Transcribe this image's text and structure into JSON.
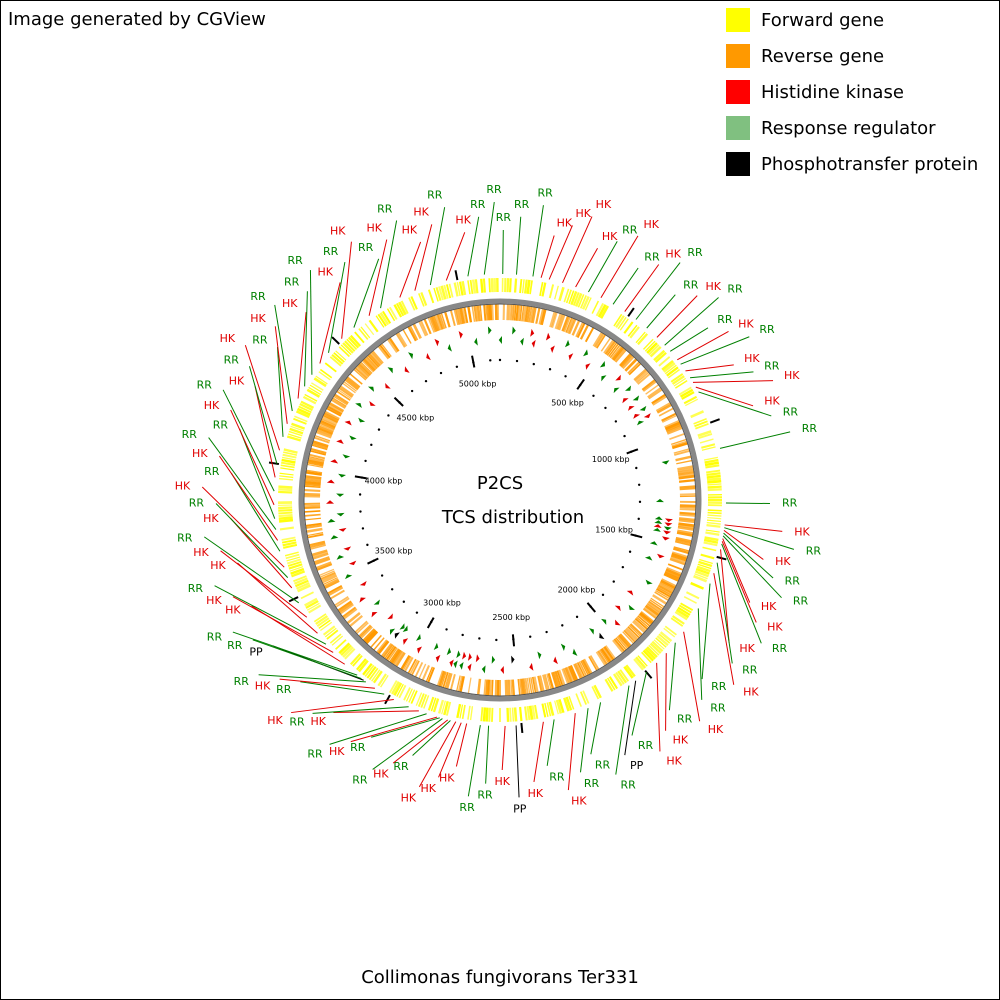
{
  "header": {
    "credit": "Image generated by CGView"
  },
  "legend": [
    {
      "label": "Forward gene",
      "color": "#ffff00"
    },
    {
      "label": "Reverse gene",
      "color": "#ff9900"
    },
    {
      "label": "Histidine kinase",
      "color": "#ff0000"
    },
    {
      "label": "Response regulator",
      "color": "#80c080"
    },
    {
      "label": "Phosphotransfer protein",
      "color": "#000000"
    }
  ],
  "map": {
    "title": "P2CS",
    "subtitle": "TCS distribution",
    "length": 5157,
    "ticks": [
      {
        "value": 500,
        "label": "500 kbp"
      },
      {
        "value": 1000,
        "label": "1000 kbp"
      },
      {
        "value": 1500,
        "label": "1500 kbp"
      },
      {
        "value": 2000,
        "label": "2000 kbp"
      },
      {
        "value": 2500,
        "label": "2500 kbp"
      },
      {
        "value": 3000,
        "label": "3000 kbp"
      },
      {
        "value": 3500,
        "label": "3500 kbp"
      },
      {
        "value": 4000,
        "label": "4000 kbp"
      },
      {
        "value": 4500,
        "label": "4500 kbp"
      },
      {
        "value": 5000,
        "label": "5000 kbp"
      }
    ],
    "colors": {
      "HK": "#e00000",
      "RR": "#008000",
      "PP": "#000000"
    },
    "features": [
      {
        "label": "RR",
        "position": 10
      },
      {
        "label": "RR",
        "position": 60
      },
      {
        "label": "RR",
        "position": 120
      },
      {
        "label": "HK",
        "position": 150
      },
      {
        "label": "HK",
        "position": 180
      },
      {
        "label": "HK",
        "position": 230
      },
      {
        "label": "HK",
        "position": 280
      },
      {
        "label": "RR",
        "position": 330
      },
      {
        "label": "HK",
        "position": 380
      },
      {
        "label": "RR",
        "position": 430
      },
      {
        "label": "HK",
        "position": 480
      },
      {
        "label": "RR",
        "position": 530
      },
      {
        "label": "RR",
        "position": 580
      },
      {
        "label": "HK",
        "position": 630
      },
      {
        "label": "RR",
        "position": 670
      },
      {
        "label": "RR",
        "position": 700
      },
      {
        "label": "HK",
        "position": 740
      },
      {
        "label": "RR",
        "position": 760
      },
      {
        "label": "HK",
        "position": 790
      },
      {
        "label": "RR",
        "position": 820
      },
      {
        "label": "HK",
        "position": 840
      },
      {
        "label": "HK",
        "position": 860
      },
      {
        "label": "RR",
        "position": 880
      },
      {
        "label": "RR",
        "position": 1100
      },
      {
        "label": "RR",
        "position": 1300
      },
      {
        "label": "HK",
        "position": 1380
      },
      {
        "label": "RR",
        "position": 1390
      },
      {
        "label": "HK",
        "position": 1400
      },
      {
        "label": "RR",
        "position": 1410
      },
      {
        "label": "RR",
        "position": 1420
      },
      {
        "label": "HK",
        "position": 1430
      },
      {
        "label": "HK",
        "position": 1440
      },
      {
        "label": "RR",
        "position": 1450
      },
      {
        "label": "HK",
        "position": 1470
      },
      {
        "label": "RR",
        "position": 1520
      },
      {
        "label": "HK",
        "position": 1560
      },
      {
        "label": "RR",
        "position": 1600
      },
      {
        "label": "RR",
        "position": 1700
      },
      {
        "label": "HK",
        "position": 1800
      },
      {
        "label": "RR",
        "position": 1850
      },
      {
        "label": "HK",
        "position": 1900
      },
      {
        "label": "HK",
        "position": 1950
      },
      {
        "label": "RR",
        "position": 2000
      },
      {
        "label": "PP",
        "position": 2050
      },
      {
        "label": "RR",
        "position": 2080
      },
      {
        "label": "RR",
        "position": 2200
      },
      {
        "label": "RR",
        "position": 2250
      },
      {
        "label": "HK",
        "position": 2300
      },
      {
        "label": "RR",
        "position": 2380
      },
      {
        "label": "HK",
        "position": 2420
      },
      {
        "label": "PP",
        "position": 2520
      },
      {
        "label": "HK",
        "position": 2560
      },
      {
        "label": "RR",
        "position": 2620
      },
      {
        "label": "RR",
        "position": 2650
      },
      {
        "label": "HK",
        "position": 2700
      },
      {
        "label": "HK",
        "position": 2720
      },
      {
        "label": "HK",
        "position": 2740
      },
      {
        "label": "RR",
        "position": 2760
      },
      {
        "label": "HK",
        "position": 2770
      },
      {
        "label": "RR",
        "position": 2790
      },
      {
        "label": "RR",
        "position": 2800
      },
      {
        "label": "HK",
        "position": 2810
      },
      {
        "label": "RR",
        "position": 2850
      },
      {
        "label": "HK",
        "position": 2880
      },
      {
        "label": "RR",
        "position": 2920
      },
      {
        "label": "HK",
        "position": 2980
      },
      {
        "label": "RR",
        "position": 3020
      },
      {
        "label": "HK",
        "position": 3060
      },
      {
        "label": "RR",
        "position": 3100
      },
      {
        "label": "PP",
        "position": 3110
      },
      {
        "label": "RR",
        "position": 3120
      },
      {
        "label": "RR",
        "position": 3140
      },
      {
        "label": "HK",
        "position": 3200
      },
      {
        "label": "HK",
        "position": 3260
      },
      {
        "label": "RR",
        "position": 3300
      },
      {
        "label": "HK",
        "position": 3350
      },
      {
        "label": "HK",
        "position": 3420
      },
      {
        "label": "RR",
        "position": 3480
      },
      {
        "label": "HK",
        "position": 3540
      },
      {
        "label": "RR",
        "position": 3580
      },
      {
        "label": "HK",
        "position": 3620
      },
      {
        "label": "RR",
        "position": 3680
      },
      {
        "label": "HK",
        "position": 3720
      },
      {
        "label": "RR",
        "position": 3760
      },
      {
        "label": "RR",
        "position": 3800
      },
      {
        "label": "HK",
        "position": 3850
      },
      {
        "label": "RR",
        "position": 3900
      },
      {
        "label": "HK",
        "position": 3950
      },
      {
        "label": "RR",
        "position": 4000
      },
      {
        "label": "HK",
        "position": 4050
      },
      {
        "label": "RR",
        "position": 4100
      },
      {
        "label": "HK",
        "position": 4150
      },
      {
        "label": "RR",
        "position": 4200
      },
      {
        "label": "HK",
        "position": 4250
      },
      {
        "label": "RR",
        "position": 4300
      },
      {
        "label": "RR",
        "position": 4350
      },
      {
        "label": "HK",
        "position": 4400
      },
      {
        "label": "RR",
        "position": 4450
      },
      {
        "label": "HK",
        "position": 4520
      },
      {
        "label": "RR",
        "position": 4580
      },
      {
        "label": "HK",
        "position": 4650
      },
      {
        "label": "RR",
        "position": 4700
      },
      {
        "label": "HK",
        "position": 4780
      },
      {
        "label": "HK",
        "position": 4840
      },
      {
        "label": "RR",
        "position": 4900
      },
      {
        "label": "HK",
        "position": 4960
      },
      {
        "label": "RR",
        "position": 5040
      },
      {
        "label": "RR",
        "position": 5100
      }
    ]
  },
  "caption": "Collimonas fungivorans Ter331"
}
